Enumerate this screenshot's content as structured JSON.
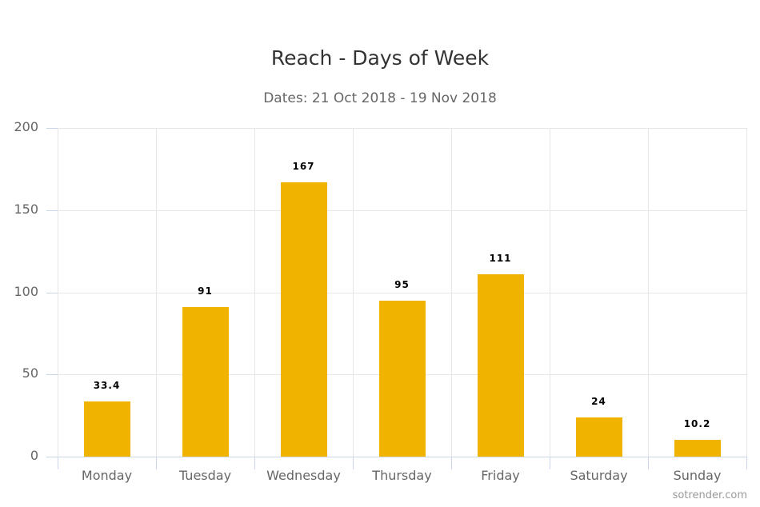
{
  "title": "Reach - Days of Week",
  "subtitle": "Dates: 21 Oct 2018 - 19 Nov 2018",
  "credit": "sotrender.com",
  "colors": {
    "bar": "#f0b400",
    "grid": "#e6e6e6",
    "axis": "#ccd6eb"
  },
  "y_ticks": [
    "0",
    "50",
    "100",
    "150",
    "200"
  ],
  "chart_data": {
    "type": "bar",
    "title": "Reach - Days of Week",
    "subtitle": "Dates: 21 Oct 2018 - 19 Nov 2018",
    "categories": [
      "Monday",
      "Tuesday",
      "Wednesday",
      "Thursday",
      "Friday",
      "Saturday",
      "Sunday"
    ],
    "values": [
      33.4,
      91,
      167,
      95,
      111,
      24,
      10.2
    ],
    "labels": [
      "33.4",
      "91",
      "167",
      "95",
      "111",
      "24",
      "10.2"
    ],
    "xlabel": "",
    "ylabel": "",
    "ylim": [
      0,
      200
    ],
    "yticks": [
      0,
      50,
      100,
      150,
      200
    ],
    "grid": true,
    "legend": false,
    "color": "#f0b400"
  }
}
